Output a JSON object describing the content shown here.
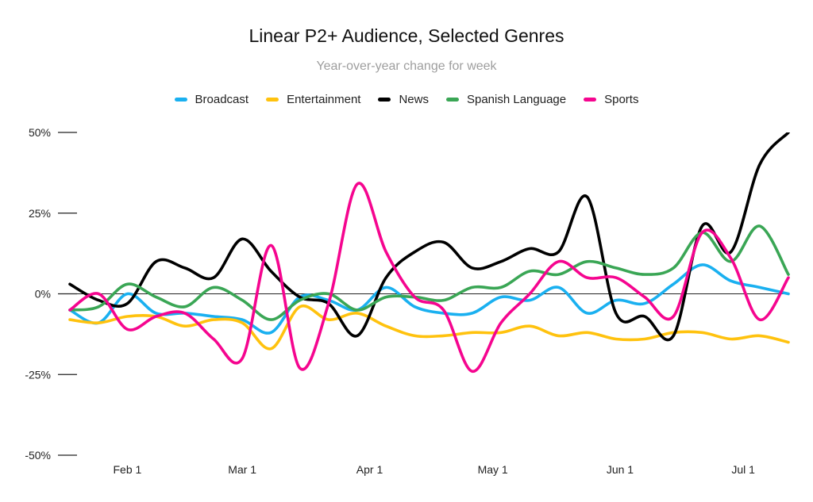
{
  "chart_data": {
    "type": "line",
    "title": "Linear P2+ Audience, Selected Genres",
    "subtitle": "Year-over-year change for week",
    "xlabel": "",
    "ylabel": "",
    "ylim": [
      -50,
      50
    ],
    "y_ticks": [
      {
        "value": 50,
        "label": "50%"
      },
      {
        "value": 25,
        "label": "25%"
      },
      {
        "value": 0,
        "label": "0%"
      },
      {
        "value": -25,
        "label": "-25%"
      },
      {
        "value": -50,
        "label": "-50%"
      }
    ],
    "x_ticks": [
      {
        "value": "2021-02-01",
        "label": "Feb 1"
      },
      {
        "value": "2021-03-01",
        "label": "Mar 1"
      },
      {
        "value": "2021-04-01",
        "label": "Apr 1"
      },
      {
        "value": "2021-05-01",
        "label": "May 1"
      },
      {
        "value": "2021-06-01",
        "label": "Jun 1"
      },
      {
        "value": "2021-07-01",
        "label": "Jul 1"
      }
    ],
    "grid": false,
    "legend_position": "top",
    "x": [
      "2021-01-18",
      "2021-01-25",
      "2021-02-01",
      "2021-02-08",
      "2021-02-15",
      "2021-02-22",
      "2021-03-01",
      "2021-03-08",
      "2021-03-15",
      "2021-03-22",
      "2021-03-29",
      "2021-04-05",
      "2021-04-12",
      "2021-04-19",
      "2021-04-26",
      "2021-05-03",
      "2021-05-10",
      "2021-05-17",
      "2021-05-24",
      "2021-05-31",
      "2021-06-07",
      "2021-06-14",
      "2021-06-21",
      "2021-06-28",
      "2021-07-05",
      "2021-07-12"
    ],
    "series": [
      {
        "name": "Broadcast",
        "color": "#1ab0f0",
        "values": [
          -5,
          -9,
          0,
          -6,
          -6,
          -7,
          -8,
          -12,
          -1,
          -2,
          -5,
          2,
          -4,
          -6,
          -6,
          -1,
          -2,
          2,
          -6,
          -2,
          -3,
          3,
          9,
          4,
          2,
          0
        ]
      },
      {
        "name": "Entertainment",
        "color": "#ffc20e",
        "values": [
          -8,
          -9,
          -7,
          -7,
          -10,
          -8,
          -9,
          -17,
          -4,
          -8,
          -6,
          -10,
          -13,
          -13,
          -12,
          -12,
          -10,
          -13,
          -12,
          -14,
          -14,
          -12,
          -12,
          -14,
          -13,
          -15
        ]
      },
      {
        "name": "News",
        "color": "#000000",
        "values": [
          3,
          -2,
          -3,
          10,
          8,
          5,
          17,
          7,
          -1,
          -3,
          -13,
          5,
          13,
          16,
          8,
          10,
          14,
          13,
          30,
          -6,
          -7,
          -13,
          21,
          13,
          40,
          50
        ]
      },
      {
        "name": "Spanish Language",
        "color": "#3aa655",
        "values": [
          -5,
          -4,
          3,
          -1,
          -4,
          2,
          -2,
          -8,
          -2,
          0,
          -5,
          -1,
          -1,
          -2,
          2,
          2,
          7,
          6,
          10,
          8,
          6,
          8,
          19,
          10,
          21,
          6
        ]
      },
      {
        "name": "Sports",
        "color": "#f5058f",
        "values": [
          -5,
          0,
          -11,
          -7,
          -6,
          -14,
          -20,
          15,
          -23,
          -3,
          34,
          13,
          -1,
          -5,
          -24,
          -9,
          0,
          10,
          5,
          5,
          -1,
          -7,
          19,
          11,
          -8,
          5
        ]
      }
    ]
  }
}
